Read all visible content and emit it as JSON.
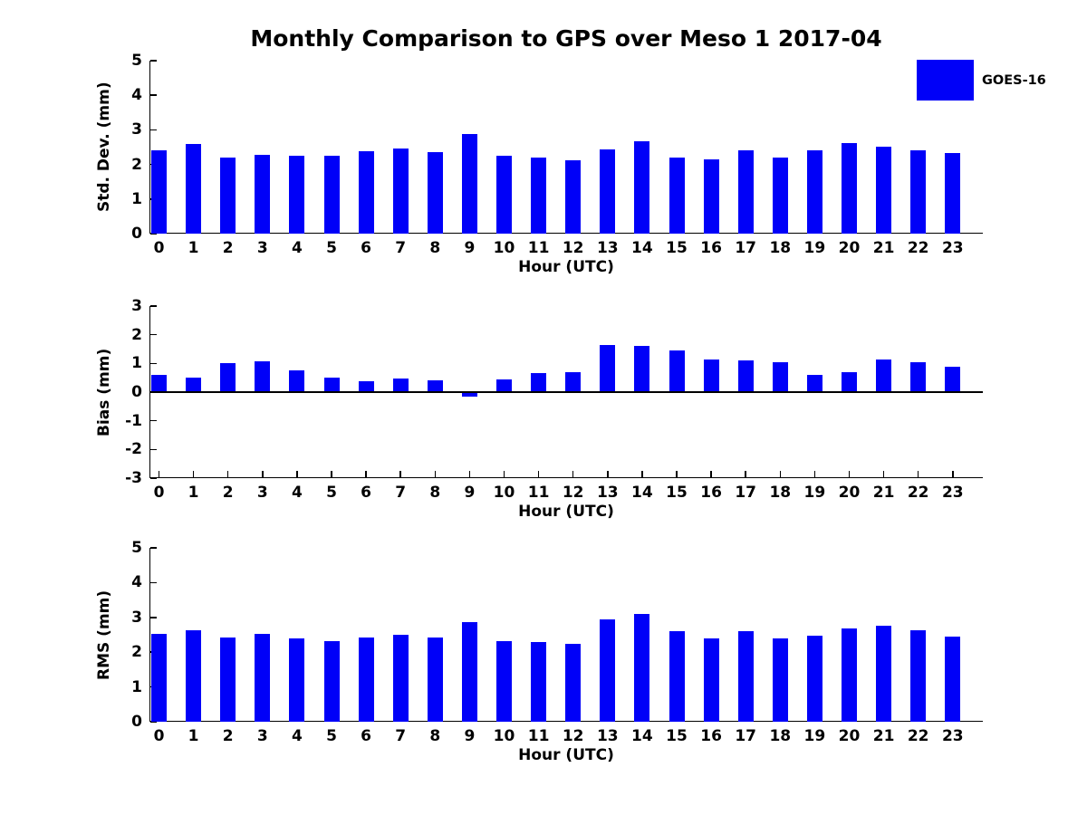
{
  "title": "Monthly Comparison to GPS over Meso 1 2017-04",
  "legend": {
    "label": "GOES-16",
    "color": "#0000f8"
  },
  "chart_data": [
    {
      "type": "bar",
      "name": "std-dev",
      "ylabel": "Std. Dev. (mm)",
      "xlabel": "Hour (UTC)",
      "categories": [
        "0",
        "1",
        "2",
        "3",
        "4",
        "5",
        "6",
        "7",
        "8",
        "9",
        "10",
        "11",
        "12",
        "13",
        "14",
        "15",
        "16",
        "17",
        "18",
        "19",
        "20",
        "21",
        "22",
        "23"
      ],
      "values": [
        2.42,
        2.6,
        2.21,
        2.29,
        2.26,
        2.26,
        2.39,
        2.45,
        2.36,
        2.87,
        2.26,
        2.19,
        2.13,
        2.44,
        2.66,
        2.21,
        2.14,
        2.4,
        2.19,
        2.41,
        2.63,
        2.52,
        2.42,
        2.32
      ],
      "ylim": [
        0,
        5
      ],
      "yticks": [
        0,
        1,
        2,
        3,
        4,
        5
      ],
      "bar_color": "#0000f8",
      "series_label": "GOES-16",
      "grid": "off",
      "legend_position": "upper-right-outside"
    },
    {
      "type": "bar",
      "name": "bias",
      "ylabel": "Bias (mm)",
      "xlabel": "Hour (UTC)",
      "categories": [
        "0",
        "1",
        "2",
        "3",
        "4",
        "5",
        "6",
        "7",
        "8",
        "9",
        "10",
        "11",
        "12",
        "13",
        "14",
        "15",
        "16",
        "17",
        "18",
        "19",
        "20",
        "21",
        "22",
        "23"
      ],
      "values": [
        0.6,
        0.52,
        1.0,
        1.07,
        0.77,
        0.52,
        0.37,
        0.46,
        0.42,
        -0.17,
        0.43,
        0.65,
        0.71,
        1.65,
        1.6,
        1.46,
        1.13,
        1.1,
        1.03,
        0.6,
        0.71,
        1.15,
        1.05,
        0.88
      ],
      "ylim": [
        -3,
        3
      ],
      "yticks": [
        -3,
        -2,
        -1,
        0,
        1,
        2,
        3
      ],
      "bar_color": "#0000f8",
      "series_label": "GOES-16",
      "grid": "off"
    },
    {
      "type": "bar",
      "name": "rms",
      "ylabel": "RMS (mm)",
      "xlabel": "Hour (UTC)",
      "categories": [
        "0",
        "1",
        "2",
        "3",
        "4",
        "5",
        "6",
        "7",
        "8",
        "9",
        "10",
        "11",
        "12",
        "13",
        "14",
        "15",
        "16",
        "17",
        "18",
        "19",
        "20",
        "21",
        "22",
        "23"
      ],
      "values": [
        2.52,
        2.64,
        2.43,
        2.52,
        2.4,
        2.31,
        2.42,
        2.5,
        2.42,
        2.86,
        2.32,
        2.28,
        2.25,
        2.93,
        3.1,
        2.61,
        2.39,
        2.6,
        2.39,
        2.47,
        2.68,
        2.76,
        2.62,
        2.44
      ],
      "ylim": [
        0,
        5
      ],
      "yticks": [
        0,
        1,
        2,
        3,
        4,
        5
      ],
      "bar_color": "#0000f8",
      "series_label": "GOES-16",
      "grid": "off"
    }
  ]
}
